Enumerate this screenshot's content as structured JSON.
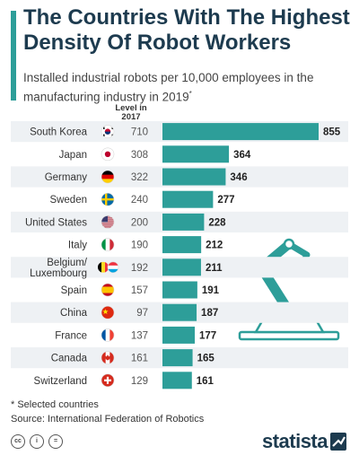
{
  "header": {
    "title": "The Countries With The Highest Density Of Robot Workers",
    "subtitle": "Installed industrial robots per 10,000 employees in the manufacturing industry in 2019",
    "subtitle_mark": "*"
  },
  "chart_data": {
    "type": "bar",
    "orientation": "horizontal",
    "column_header": "Level in 2017",
    "categories": [
      "South Korea",
      "Japan",
      "Germany",
      "Sweden",
      "United States",
      "Italy",
      "Belgium/ Luxembourg",
      "Spain",
      "China",
      "France",
      "Canada",
      "Switzerland"
    ],
    "values_2019": [
      855,
      364,
      346,
      277,
      228,
      212,
      211,
      191,
      187,
      177,
      165,
      161
    ],
    "level_2017": [
      710,
      308,
      322,
      240,
      200,
      190,
      192,
      157,
      97,
      137,
      161,
      129
    ],
    "flags": [
      "south-korea-flag",
      "japan-flag",
      "germany-flag",
      "sweden-flag",
      "united-states-flag",
      "italy-flag",
      "belgium-luxembourg-flags",
      "spain-flag",
      "china-flag",
      "france-flag",
      "canada-flag",
      "switzerland-flag"
    ],
    "xlim": [
      0,
      855
    ],
    "grid": false,
    "bar_color": "#2d9e99",
    "row_stripe_color": "#eef1f4"
  },
  "footer": {
    "footnote": "* Selected countries",
    "source": "Source: International Federation of Robotics",
    "brand": "statista",
    "license_icons": [
      "cc-icon",
      "by-icon",
      "nd-icon"
    ],
    "license_glyphs": [
      "cc",
      "i",
      "="
    ]
  },
  "colors": {
    "accent": "#2d9e99",
    "title": "#1d3b4f",
    "robot_arm": "#2d9e99"
  }
}
